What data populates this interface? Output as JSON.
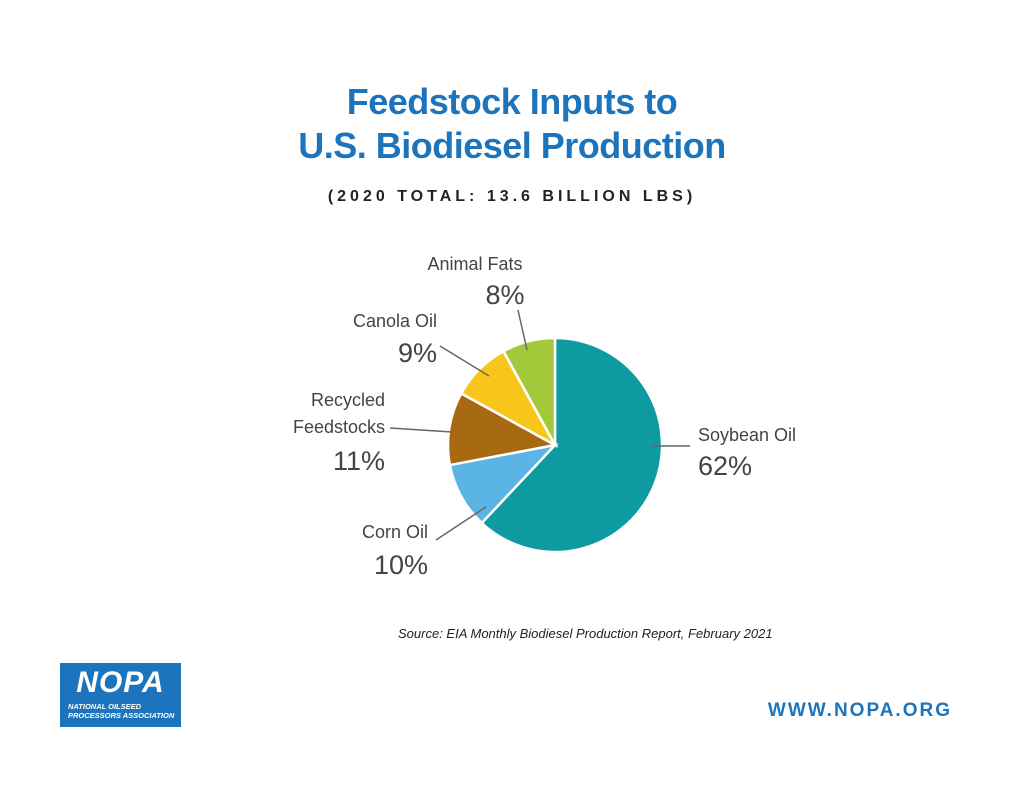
{
  "title_line1": "Feedstock Inputs to",
  "title_line2": "U.S. Biodiesel Production",
  "subtitle": "(2020 TOTAL: 13.6 BILLION LBS)",
  "chart_data": {
    "type": "pie",
    "unit": "%",
    "slices": [
      {
        "label": "Soybean Oil",
        "value": 62,
        "value_label": "62%",
        "color": "#0e9aa1"
      },
      {
        "label": "Corn Oil",
        "value": 10,
        "value_label": "10%",
        "color": "#5ab4e4"
      },
      {
        "label": "Recycled Feedstocks",
        "label_lines": [
          "Recycled",
          "Feedstocks"
        ],
        "value": 11,
        "value_label": "11%",
        "color": "#a76a12"
      },
      {
        "label": "Canola Oil",
        "value": 9,
        "value_label": "9%",
        "color": "#f8c61b"
      },
      {
        "label": "Animal Fats",
        "value": 8,
        "value_label": "8%",
        "color": "#a3c93a"
      }
    ]
  },
  "source": "Source: EIA Monthly Biodiesel Production Report, February 2021",
  "logo": {
    "word": "NOPA",
    "subtitle": "NATIONAL OILSEED\nPROCESSORS ASSOCIATION",
    "color": "#1c75bc"
  },
  "website": "WWW.NOPA.ORG",
  "colors": {
    "title": "#1c75bc",
    "text": "#444444"
  }
}
